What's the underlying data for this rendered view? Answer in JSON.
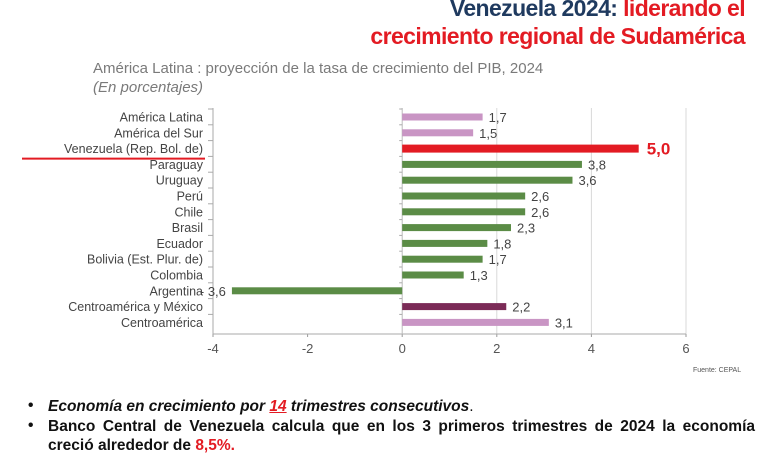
{
  "header": {
    "title_part1": "Venezuela 2024: ",
    "title_part2": "liderando el",
    "title_line2": "crecimiento regional de Sudamérica"
  },
  "chart_data": {
    "type": "bar",
    "orientation": "horizontal",
    "title": "América Latina  : proyección de la tasa de crecimiento del PIB, 2024",
    "subtitle": "(En porcentajes)",
    "categories": [
      "América Latina",
      "América del Sur",
      "Venezuela (Rep. Bol. de)",
      "Paraguay",
      "Uruguay",
      "Perú",
      "Chile",
      "Brasil",
      "Ecuador",
      "Bolivia (Est. Plur. de)",
      "Colombia",
      "Argentina",
      "Centroamérica y México",
      "Centroamérica"
    ],
    "values": [
      1.7,
      1.5,
      5.0,
      3.8,
      3.6,
      2.6,
      2.6,
      2.3,
      1.8,
      1.7,
      1.3,
      -3.6,
      2.2,
      3.1
    ],
    "value_labels": [
      "1,7",
      "1,5",
      "5,0",
      "3,8",
      "3,6",
      "2,6",
      "2,6",
      "2,3",
      "1,8",
      "1,7",
      "1,3",
      "- 3,6",
      "2,2",
      "3,1"
    ],
    "bar_colors": [
      "#c995c4",
      "#c995c4",
      "#e31b23",
      "#5b8c46",
      "#5b8c46",
      "#5b8c46",
      "#5b8c46",
      "#5b8c46",
      "#5b8c46",
      "#5b8c46",
      "#5b8c46",
      "#5b8c46",
      "#7b2b57",
      "#c995c4"
    ],
    "highlight": "Venezuela (Rep. Bol. de)",
    "xlim": [
      -4,
      6
    ],
    "xticks": [
      -4,
      -2,
      0,
      2,
      4,
      6
    ],
    "xtick_labels": [
      "-4",
      "-2",
      "0",
      "2",
      "4",
      "6"
    ],
    "grid": true,
    "source": "Fuente: CEPAL"
  },
  "bullets": {
    "b1_pre": "Economía en crecimiento por ",
    "b1_num": "14",
    "b1_post": " trimestres consecutivos",
    "b1_end": ".",
    "b2_pre": "Banco Central de Venezuela calcula que en los 3 primeros trimestres de 2024 la economía creció alrededor de ",
    "b2_val": "8,5%."
  }
}
